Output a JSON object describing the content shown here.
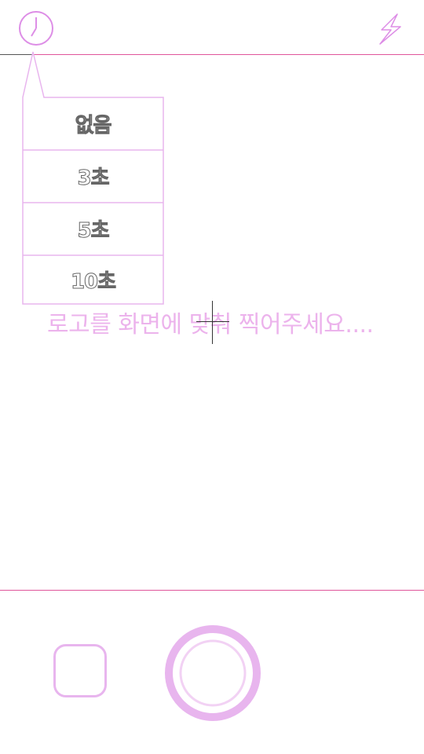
{
  "toolbar": {
    "timer_icon": "clock-icon",
    "flash_icon": "lightning-icon"
  },
  "timer_menu": {
    "options": [
      "없음",
      "3초",
      "5초",
      "10초"
    ]
  },
  "viewfinder": {
    "hint": "로고를 화면에 맞춰 찍어주세요...."
  },
  "controls": {
    "gallery_icon": "rounded-square-icon",
    "shutter_icon": "shutter-icon"
  },
  "colors": {
    "accent": "#e0559a",
    "icon": "#dd8ee6",
    "hint_text": "#ecb3ec",
    "shutter_outer": "#e8b5ee"
  }
}
